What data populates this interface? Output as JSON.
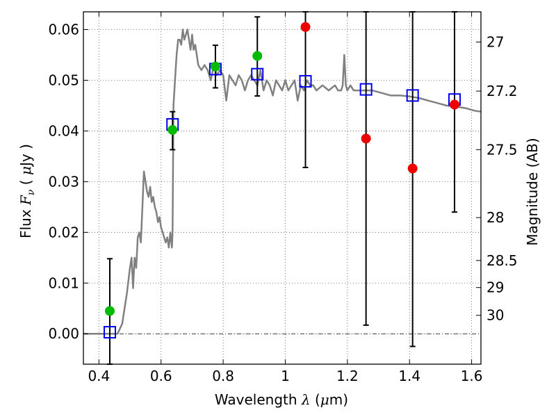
{
  "chart_data": {
    "type": "scatter",
    "title": "",
    "xlabel": {
      "text": "Wavelength",
      "symbol": "λ",
      "unit_open": " (",
      "unit_mu": "μ",
      "unit_rest": "m)"
    },
    "ylabel": {
      "text": "Flux",
      "symbol": "F",
      "sub": "ν",
      "unit_open": "(",
      "unit_mu": "μ",
      "unit_rest": "Jy",
      "unit_close": ")"
    },
    "y2label": "Magnitude (AB)",
    "xlim": [
      0.35,
      1.63
    ],
    "ylim": [
      -0.006,
      0.0635
    ],
    "x_ticks": [
      0.4,
      0.6,
      0.8,
      1.0,
      1.2,
      1.4,
      1.6
    ],
    "x_tick_labels": [
      "0.4",
      "0.6",
      "0.8",
      "1",
      "1.2",
      "1.4",
      "1.6"
    ],
    "y_ticks": [
      0.0,
      0.01,
      0.02,
      0.03,
      0.04,
      0.05,
      0.06
    ],
    "y_tick_labels": [
      "0.00",
      "0.01",
      "0.02",
      "0.03",
      "0.04",
      "0.05",
      "0.06"
    ],
    "y2_ticks": [
      27,
      27.2,
      27.5,
      28,
      28.5,
      29,
      30
    ],
    "y2_tick_labels": [
      "27",
      "27.2",
      "27.5",
      "28",
      "28.5",
      "29",
      "30"
    ],
    "grid": true,
    "zero_line": true,
    "colors": {
      "model": "#808080",
      "observed": "#00bb00",
      "upper": "#ee0000",
      "box": "#0000ee",
      "errorbar": "#000000"
    },
    "model_spectrum": {
      "x": [
        0.35,
        0.46,
        0.475,
        0.48,
        0.49,
        0.5,
        0.505,
        0.51,
        0.515,
        0.52,
        0.525,
        0.53,
        0.535,
        0.54,
        0.545,
        0.55,
        0.555,
        0.56,
        0.565,
        0.57,
        0.575,
        0.58,
        0.585,
        0.59,
        0.595,
        0.6,
        0.605,
        0.61,
        0.615,
        0.62,
        0.625,
        0.63,
        0.635,
        0.637,
        0.64,
        0.645,
        0.65,
        0.655,
        0.66,
        0.665,
        0.67,
        0.675,
        0.68,
        0.685,
        0.69,
        0.695,
        0.7,
        0.705,
        0.71,
        0.715,
        0.72,
        0.73,
        0.74,
        0.75,
        0.76,
        0.77,
        0.78,
        0.79,
        0.8,
        0.81,
        0.82,
        0.83,
        0.84,
        0.85,
        0.86,
        0.87,
        0.88,
        0.89,
        0.9,
        0.91,
        0.92,
        0.93,
        0.94,
        0.95,
        0.96,
        0.97,
        0.98,
        0.99,
        1.0,
        1.01,
        1.02,
        1.03,
        1.04,
        1.05,
        1.06,
        1.07,
        1.08,
        1.09,
        1.1,
        1.12,
        1.14,
        1.16,
        1.17,
        1.18,
        1.185,
        1.19,
        1.195,
        1.2,
        1.21,
        1.22,
        1.25,
        1.28,
        1.31,
        1.34,
        1.37,
        1.4,
        1.43,
        1.46,
        1.49,
        1.52,
        1.55,
        1.58,
        1.61,
        1.63
      ],
      "y": [
        0.0,
        0.0,
        0.002,
        0.004,
        0.008,
        0.013,
        0.015,
        0.009,
        0.015,
        0.013,
        0.019,
        0.02,
        0.018,
        0.025,
        0.032,
        0.03,
        0.028,
        0.027,
        0.029,
        0.026,
        0.027,
        0.025,
        0.024,
        0.022,
        0.023,
        0.021,
        0.02,
        0.019,
        0.018,
        0.019,
        0.017,
        0.02,
        0.017,
        0.02,
        0.045,
        0.05,
        0.055,
        0.058,
        0.058,
        0.057,
        0.06,
        0.058,
        0.059,
        0.06,
        0.058,
        0.056,
        0.059,
        0.056,
        0.057,
        0.055,
        0.053,
        0.052,
        0.053,
        0.052,
        0.05,
        0.053,
        0.051,
        0.052,
        0.051,
        0.046,
        0.051,
        0.05,
        0.049,
        0.051,
        0.05,
        0.048,
        0.05,
        0.051,
        0.05,
        0.049,
        0.052,
        0.048,
        0.05,
        0.049,
        0.047,
        0.05,
        0.049,
        0.048,
        0.05,
        0.048,
        0.049,
        0.05,
        0.046,
        0.049,
        0.048,
        0.05,
        0.049,
        0.049,
        0.048,
        0.049,
        0.048,
        0.049,
        0.048,
        0.048,
        0.049,
        0.055,
        0.049,
        0.048,
        0.049,
        0.048,
        0.048,
        0.048,
        0.0475,
        0.047,
        0.047,
        0.0468,
        0.0465,
        0.046,
        0.0455,
        0.045,
        0.0448,
        0.0445,
        0.044,
        0.0438
      ]
    },
    "error_bars": [
      {
        "x": 0.435,
        "low": -0.006,
        "high": 0.0148
      },
      {
        "x": 0.637,
        "low": 0.0363,
        "high": 0.0438
      },
      {
        "x": 0.775,
        "low": 0.0485,
        "high": 0.0569
      },
      {
        "x": 0.91,
        "low": 0.0469,
        "high": 0.0625
      },
      {
        "x": 1.065,
        "low": 0.0328,
        "high": 0.0635
      },
      {
        "x": 1.26,
        "low": 0.0017,
        "high": 0.0635
      },
      {
        "x": 1.41,
        "low": -0.0025,
        "high": 0.0635
      },
      {
        "x": 1.545,
        "low": 0.024,
        "high": 0.0635
      }
    ],
    "model_boxes": [
      {
        "x": 0.435,
        "y": 0.0003
      },
      {
        "x": 0.637,
        "y": 0.0413
      },
      {
        "x": 0.775,
        "y": 0.0522
      },
      {
        "x": 0.91,
        "y": 0.0512
      },
      {
        "x": 1.065,
        "y": 0.0498
      },
      {
        "x": 1.26,
        "y": 0.0482
      },
      {
        "x": 1.41,
        "y": 0.047
      },
      {
        "x": 1.545,
        "y": 0.0462
      }
    ],
    "observed_points": [
      {
        "x": 0.435,
        "y": 0.0045
      },
      {
        "x": 0.637,
        "y": 0.0402
      },
      {
        "x": 0.775,
        "y": 0.0527
      },
      {
        "x": 0.91,
        "y": 0.0548
      }
    ],
    "upper_limit_points": [
      {
        "x": 1.065,
        "y": 0.0605
      },
      {
        "x": 1.26,
        "y": 0.0385
      },
      {
        "x": 1.41,
        "y": 0.0326
      },
      {
        "x": 1.545,
        "y": 0.0452
      }
    ]
  }
}
